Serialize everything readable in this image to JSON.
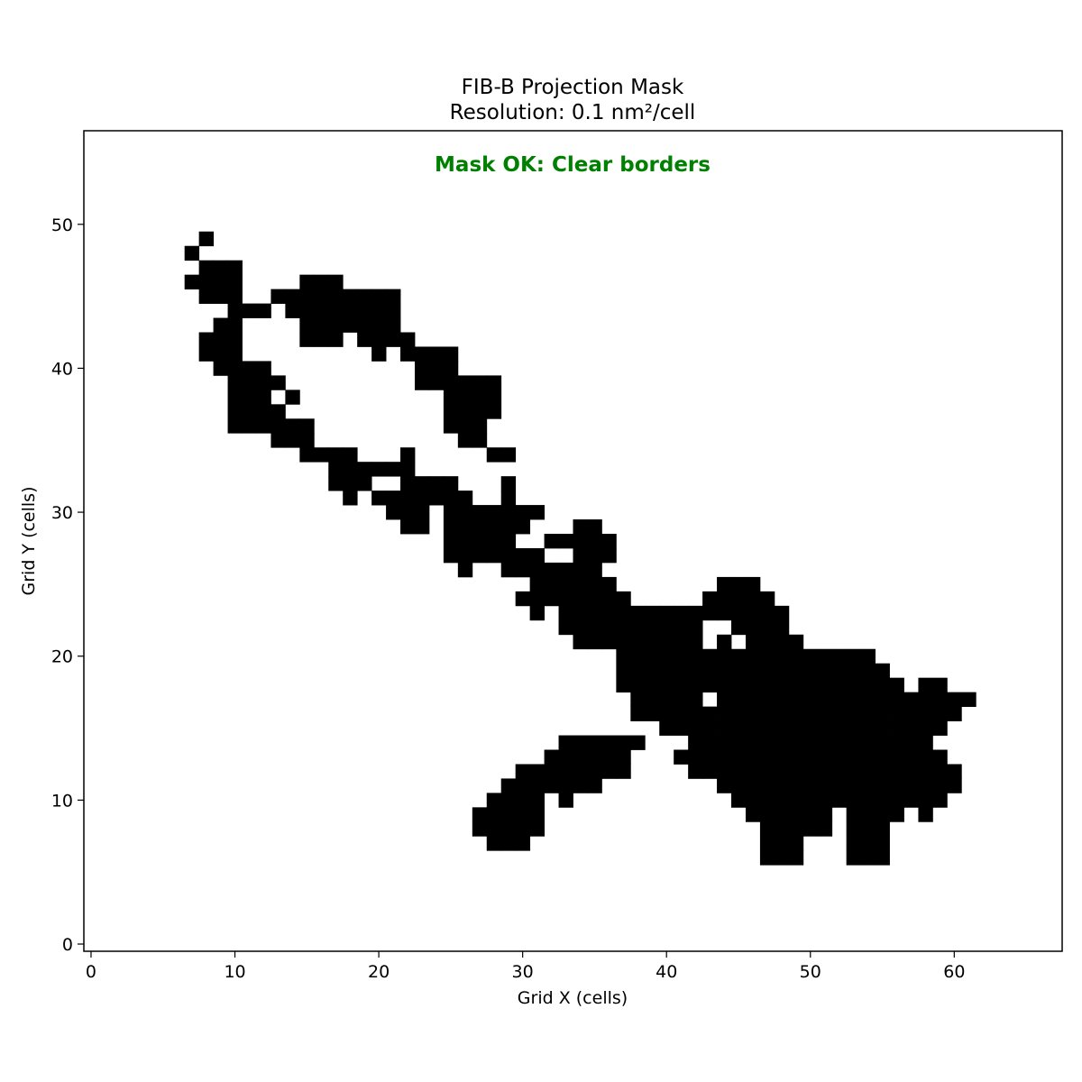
{
  "chart_data": {
    "type": "heatmap",
    "title": "FIB-B Projection Mask",
    "subtitle": "Resolution: 0.1 nm²/cell",
    "xlabel": "Grid X (cells)",
    "ylabel": "Grid Y (cells)",
    "xlim": [
      -0.5,
      67.5
    ],
    "ylim": [
      -0.5,
      56.5
    ],
    "xticks": [
      0,
      10,
      20,
      30,
      40,
      50,
      60
    ],
    "yticks": [
      0,
      10,
      20,
      30,
      40,
      50
    ],
    "grid": false,
    "colormap": {
      "filled": "#000000",
      "empty": "#ffffff"
    },
    "annotation": {
      "text": "Mask OK: Clear borders",
      "color": "#008000"
    },
    "cell_encoding": "rows listed from y=49 down to y=6; each entry is [y, [[x_start, x_end], ...]] filled cells inclusive",
    "rows": [
      [
        49,
        [
          [
            8,
            8
          ]
        ]
      ],
      [
        48,
        [
          [
            7,
            7
          ]
        ]
      ],
      [
        47,
        [
          [
            8,
            10
          ]
        ]
      ],
      [
        46,
        [
          [
            7,
            10
          ],
          [
            15,
            17
          ]
        ]
      ],
      [
        45,
        [
          [
            8,
            10
          ],
          [
            13,
            21
          ]
        ]
      ],
      [
        44,
        [
          [
            10,
            12
          ],
          [
            14,
            21
          ]
        ]
      ],
      [
        43,
        [
          [
            9,
            10
          ],
          [
            15,
            21
          ]
        ]
      ],
      [
        42,
        [
          [
            8,
            10
          ],
          [
            15,
            17
          ],
          [
            19,
            22
          ]
        ]
      ],
      [
        41,
        [
          [
            8,
            10
          ],
          [
            20,
            20
          ],
          [
            22,
            25
          ]
        ]
      ],
      [
        40,
        [
          [
            9,
            12
          ],
          [
            23,
            25
          ]
        ]
      ],
      [
        39,
        [
          [
            10,
            13
          ],
          [
            23,
            28
          ]
        ]
      ],
      [
        38,
        [
          [
            10,
            12
          ],
          [
            14,
            14
          ],
          [
            25,
            28
          ]
        ]
      ],
      [
        37,
        [
          [
            10,
            13
          ],
          [
            25,
            28
          ]
        ]
      ],
      [
        36,
        [
          [
            10,
            15
          ],
          [
            25,
            27
          ]
        ]
      ],
      [
        35,
        [
          [
            13,
            15
          ],
          [
            26,
            27
          ]
        ]
      ],
      [
        34,
        [
          [
            15,
            18
          ],
          [
            22,
            22
          ],
          [
            28,
            29
          ]
        ]
      ],
      [
        33,
        [
          [
            17,
            22
          ]
        ]
      ],
      [
        32,
        [
          [
            17,
            19
          ],
          [
            22,
            25
          ],
          [
            29,
            29
          ]
        ]
      ],
      [
        31,
        [
          [
            18,
            18
          ],
          [
            20,
            26
          ],
          [
            29,
            29
          ]
        ]
      ],
      [
        30,
        [
          [
            21,
            23
          ],
          [
            25,
            31
          ]
        ]
      ],
      [
        29,
        [
          [
            22,
            23
          ],
          [
            25,
            30
          ],
          [
            34,
            36
          ]
        ]
      ],
      [
        28,
        [
          [
            25,
            29
          ],
          [
            32,
            36
          ]
        ]
      ],
      [
        27,
        [
          [
            25,
            31
          ],
          [
            34,
            36
          ]
        ]
      ],
      [
        26,
        [
          [
            26,
            26
          ],
          [
            29,
            35
          ]
        ]
      ],
      [
        25,
        [
          [
            31,
            36
          ],
          [
            44,
            46
          ]
        ]
      ],
      [
        24,
        [
          [
            30,
            37
          ],
          [
            43,
            47
          ]
        ]
      ],
      [
        23,
        [
          [
            31,
            31
          ],
          [
            33,
            48
          ]
        ]
      ],
      [
        22,
        [
          [
            33,
            42
          ],
          [
            45,
            48
          ]
        ]
      ],
      [
        21,
        [
          [
            34,
            42
          ],
          [
            44,
            49
          ]
        ]
      ],
      [
        20,
        [
          [
            37,
            54
          ]
        ]
      ],
      [
        19,
        [
          [
            37,
            55
          ]
        ]
      ],
      [
        18,
        [
          [
            37,
            56
          ],
          [
            58,
            59
          ]
        ]
      ],
      [
        17,
        [
          [
            38,
            42
          ],
          [
            44,
            61
          ]
        ]
      ],
      [
        16,
        [
          [
            38,
            60
          ]
        ]
      ],
      [
        15,
        [
          [
            40,
            59
          ]
        ]
      ],
      [
        14,
        [
          [
            33,
            38
          ],
          [
            42,
            58
          ]
        ]
      ],
      [
        13,
        [
          [
            32,
            37
          ],
          [
            41,
            59
          ]
        ]
      ],
      [
        12,
        [
          [
            30,
            37
          ],
          [
            42,
            60
          ]
        ]
      ],
      [
        11,
        [
          [
            29,
            35
          ],
          [
            44,
            60
          ]
        ]
      ],
      [
        10,
        [
          [
            28,
            31
          ],
          [
            33,
            33
          ],
          [
            45,
            59
          ]
        ]
      ],
      [
        9,
        [
          [
            27,
            31
          ],
          [
            46,
            51
          ],
          [
            53,
            56
          ],
          [
            58,
            58
          ]
        ]
      ],
      [
        8,
        [
          [
            27,
            31
          ],
          [
            47,
            51
          ],
          [
            53,
            55
          ]
        ]
      ],
      [
        7,
        [
          [
            28,
            30
          ],
          [
            47,
            49
          ],
          [
            53,
            55
          ]
        ]
      ],
      [
        6,
        [
          [
            47,
            49
          ],
          [
            53,
            55
          ]
        ]
      ]
    ],
    "holes": [
      [
        22,
        43
      ],
      [
        21,
        45
      ],
      [
        17,
        43
      ],
      [
        27,
        33
      ],
      [
        29,
        36
      ]
    ]
  }
}
